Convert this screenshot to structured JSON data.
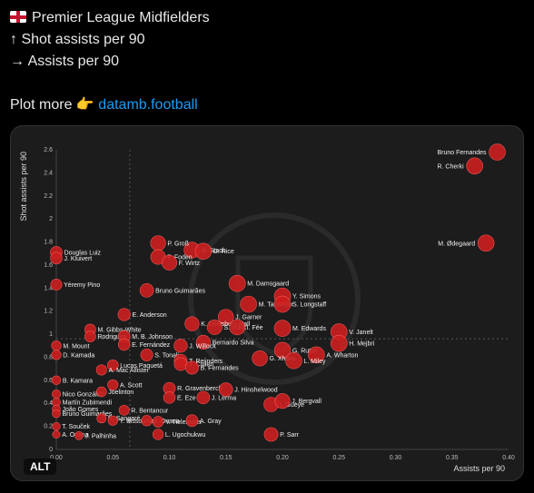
{
  "post": {
    "line1": "Premier League Midfielders",
    "line2": "↑ Shot assists per 90",
    "line3": "→ Assists per 90",
    "plot_more": "Plot more",
    "pointing_emoji": "👉",
    "link": "datamb.football",
    "alt_badge": "ALT"
  },
  "colors": {
    "background": "#000000",
    "card": "#1c1c1c",
    "point": "#cc1f1f",
    "link": "#1d9bf0"
  },
  "chart_data": {
    "type": "scatter",
    "xlabel": "Assists per 90",
    "ylabel": "Shot assists per 90",
    "xlim": [
      0,
      0.4
    ],
    "ylim": [
      0,
      2.6
    ],
    "x_ticks": [
      "0.00",
      "0.05",
      "0.10",
      "0.15",
      "0.20",
      "0.25",
      "0.30",
      "0.35",
      "0.40"
    ],
    "y_ticks": [
      "0",
      "0.2",
      "0.4",
      "0.6",
      "0.8",
      "1",
      "1.2",
      "1.4",
      "1.6",
      "1.8",
      "2",
      "2.2",
      "2.4",
      "2.6"
    ],
    "points": [
      {
        "label": "Bruno Fernandes",
        "x": 0.39,
        "y": 2.58
      },
      {
        "label": "R. Cherki",
        "x": 0.37,
        "y": 2.46
      },
      {
        "label": "M. Ødegaard",
        "x": 0.38,
        "y": 1.79
      },
      {
        "label": "Douglas Luiz",
        "x": 0.0,
        "y": 1.71
      },
      {
        "label": "A. Stach",
        "x": 0.12,
        "y": 1.73
      },
      {
        "label": "D. Rice",
        "x": 0.13,
        "y": 1.72
      },
      {
        "label": "P. Groß",
        "x": 0.09,
        "y": 1.79
      },
      {
        "label": "P. Foden",
        "x": 0.09,
        "y": 1.67
      },
      {
        "label": "F. Wirtz",
        "x": 0.1,
        "y": 1.62
      },
      {
        "label": "J. Kluivert",
        "x": 0.0,
        "y": 1.66
      },
      {
        "label": "Yéremy Pino",
        "x": 0.0,
        "y": 1.43
      },
      {
        "label": "M. Damsgaard",
        "x": 0.16,
        "y": 1.44
      },
      {
        "label": "Bruno Guimarães",
        "x": 0.08,
        "y": 1.38
      },
      {
        "label": "Y. Simons",
        "x": 0.2,
        "y": 1.33
      },
      {
        "label": "M. Tavernier",
        "x": 0.17,
        "y": 1.26
      },
      {
        "label": "S. Longstaff",
        "x": 0.2,
        "y": 1.26
      },
      {
        "label": "E. Anderson",
        "x": 0.06,
        "y": 1.17
      },
      {
        "label": "J. Garner",
        "x": 0.15,
        "y": 1.15
      },
      {
        "label": "K. Dewsbury-Hall",
        "x": 0.12,
        "y": 1.09
      },
      {
        "label": "S. Lukić",
        "x": 0.14,
        "y": 1.06
      },
      {
        "label": "I. Fée",
        "x": 0.16,
        "y": 1.06
      },
      {
        "label": "M. Edwards",
        "x": 0.2,
        "y": 1.05
      },
      {
        "label": "V. Janelt",
        "x": 0.25,
        "y": 1.02
      },
      {
        "label": "M. Gibbs-White",
        "x": 0.03,
        "y": 1.04
      },
      {
        "label": "Rodrigues",
        "x": 0.03,
        "y": 0.98
      },
      {
        "label": "M. B. Johnson",
        "x": 0.06,
        "y": 0.98
      },
      {
        "label": "Bernardo Silva",
        "x": 0.13,
        "y": 0.93
      },
      {
        "label": "H. Mejbri",
        "x": 0.25,
        "y": 0.92
      },
      {
        "label": "M. Mount",
        "x": 0.0,
        "y": 0.9
      },
      {
        "label": "E. Fernández",
        "x": 0.06,
        "y": 0.91
      },
      {
        "label": "J. Willock",
        "x": 0.11,
        "y": 0.9
      },
      {
        "label": "G. Rutter",
        "x": 0.2,
        "y": 0.86
      },
      {
        "label": "A. Wharton",
        "x": 0.23,
        "y": 0.82
      },
      {
        "label": "D. Kamada",
        "x": 0.0,
        "y": 0.82
      },
      {
        "label": "S. Tonali",
        "x": 0.08,
        "y": 0.82
      },
      {
        "label": "G. Xhaka",
        "x": 0.18,
        "y": 0.79
      },
      {
        "label": "L. Miley",
        "x": 0.21,
        "y": 0.77
      },
      {
        "label": "T. Reijnders",
        "x": 0.11,
        "y": 0.77
      },
      {
        "label": "Lucas Paquetá",
        "x": 0.05,
        "y": 0.73
      },
      {
        "label": "J. Cullen",
        "x": 0.11,
        "y": 0.74
      },
      {
        "label": "A. Mac Allister",
        "x": 0.04,
        "y": 0.69
      },
      {
        "label": "B. Fernandes",
        "x": 0.12,
        "y": 0.71
      },
      {
        "label": "B. Kamara",
        "x": 0.0,
        "y": 0.6
      },
      {
        "label": "A. Scott",
        "x": 0.05,
        "y": 0.56
      },
      {
        "label": "R. Gravenberch",
        "x": 0.1,
        "y": 0.53
      },
      {
        "label": "J. Hinshelwood",
        "x": 0.15,
        "y": 0.52
      },
      {
        "label": "Nico González",
        "x": 0.0,
        "y": 0.48
      },
      {
        "label": "Joelinton",
        "x": 0.04,
        "y": 0.5
      },
      {
        "label": "E. Eze",
        "x": 0.1,
        "y": 0.45
      },
      {
        "label": "J. Lerma",
        "x": 0.13,
        "y": 0.45
      },
      {
        "label": "Martín Zubimendi",
        "x": 0.0,
        "y": 0.41
      },
      {
        "label": "I. Gueye",
        "x": 0.19,
        "y": 0.39
      },
      {
        "label": "J. Bergvall",
        "x": 0.2,
        "y": 0.42
      },
      {
        "label": "João Gomes",
        "x": 0.0,
        "y": 0.35
      },
      {
        "label": "R. Bentancur",
        "x": 0.06,
        "y": 0.34
      },
      {
        "label": "Bruno Guimarães",
        "x": 0.0,
        "y": 0.31
      },
      {
        "label": "N. Sangaré",
        "x": 0.04,
        "y": 0.27
      },
      {
        "label": "Y. Bissouma",
        "x": 0.05,
        "y": 0.25
      },
      {
        "label": "J. Onana",
        "x": 0.08,
        "y": 0.25
      },
      {
        "label": "Y. Tielemans",
        "x": 0.09,
        "y": 0.24
      },
      {
        "label": "A. Gray",
        "x": 0.12,
        "y": 0.25
      },
      {
        "label": "T. Souček",
        "x": 0.0,
        "y": 0.2
      },
      {
        "label": "A. Onana",
        "x": 0.0,
        "y": 0.13
      },
      {
        "label": "J. Palhinha",
        "x": 0.02,
        "y": 0.12
      },
      {
        "label": "L. Ugochukwu",
        "x": 0.09,
        "y": 0.13
      },
      {
        "label": "P. Sarr",
        "x": 0.19,
        "y": 0.13
      }
    ],
    "visible_labels": [
      "Bruno Fernandes",
      "R. Cherki",
      "M. Ødegaard",
      "Douglas Luiz",
      "A. Stach",
      "D. Rice",
      "P. Groß",
      "P. Foden",
      "F. Wirtz",
      "J. Kluivert",
      "Yéremy Pino",
      "M. Damsgaard",
      "Bruno Guimarães",
      "Y. Simons",
      "M. Tavernier",
      "S. Longstaff",
      "E. Anderson",
      "J. Garner",
      "K. Dewsbury-Hall",
      "S. Lukić",
      "I. Fée",
      "M. Edwards",
      "V. Janelt",
      "M. Gibbs-White",
      "Rodrigues",
      "M. B. Johnson",
      "Bernardo Silva",
      "H. Mejbri",
      "M. Mount",
      "E. Fernández",
      "J. Willock",
      "G. Rutter",
      "A. Wharton",
      "D. Kamada",
      "S. Tonali",
      "G. Xhaka",
      "L. Miley",
      "T. Reijnders",
      "Lucas Paquetá",
      "J. Cullen",
      "A. Mac Allister",
      "B. Fernandes",
      "B. Kamara",
      "A. Scott",
      "R. Gravenberch",
      "J. Hinshelwood",
      "Nico González",
      "Joelinton",
      "E. Eze",
      "J. Lerma",
      "Martín Zubimendi",
      "I. Gueye",
      "J. Bergvall",
      "João Gomes",
      "R. Bentancur",
      "Y. Bissouma",
      "N. Sangaré",
      "J. Onana",
      "Y. Tielemans",
      "A. Gray",
      "T. Souček",
      "A. Onana",
      "J. Palhinha",
      "L. Ugochukwu",
      "P. Sarr"
    ],
    "grid": false,
    "reference_lines": {
      "x": 0.065,
      "y": 0.96
    }
  }
}
